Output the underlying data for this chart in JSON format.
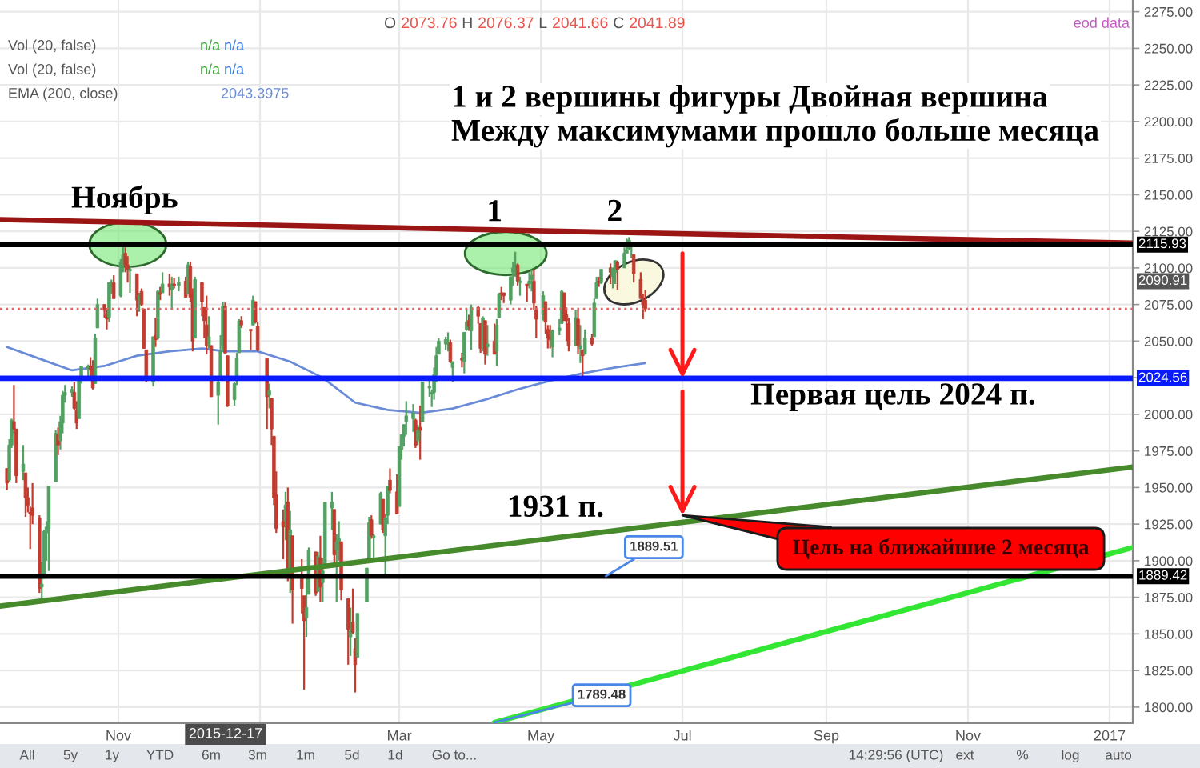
{
  "chart_data": {
    "type": "candlestick",
    "title": "1 и 2 вершины фигуры Двойная вершина",
    "subtitle": "Между максимумами прошло больше месяца",
    "x": [
      "2015-09-14",
      "2015-09-15",
      "2015-09-16",
      "2015-09-17",
      "2015-09-18",
      "2015-09-21",
      "2015-09-22",
      "2015-09-23",
      "2015-09-24",
      "2015-09-25",
      "2015-09-28",
      "2015-09-29",
      "2015-09-30",
      "2015-10-01",
      "2015-10-02",
      "2015-10-05",
      "2015-10-06",
      "2015-10-07",
      "2015-10-08",
      "2015-10-09",
      "2015-10-12",
      "2015-10-13",
      "2015-10-14",
      "2015-10-15",
      "2015-10-16",
      "2015-10-19",
      "2015-10-20",
      "2015-10-21",
      "2015-10-22",
      "2015-10-23",
      "2015-10-26",
      "2015-10-27",
      "2015-10-28",
      "2015-10-29",
      "2015-10-30",
      "2015-11-02",
      "2015-11-03",
      "2015-11-04",
      "2015-11-05",
      "2015-11-06",
      "2015-11-09",
      "2015-11-10",
      "2015-11-11",
      "2015-11-12",
      "2015-11-13",
      "2015-11-16",
      "2015-11-17",
      "2015-11-18",
      "2015-11-19",
      "2015-11-20",
      "2015-11-23",
      "2015-11-24",
      "2015-11-25",
      "2015-11-27",
      "2015-11-30",
      "2015-12-01",
      "2015-12-02",
      "2015-12-03",
      "2015-12-04",
      "2015-12-07",
      "2015-12-08",
      "2015-12-09",
      "2015-12-10",
      "2015-12-11",
      "2015-12-14",
      "2015-12-15",
      "2015-12-16",
      "2015-12-17",
      "2015-12-18",
      "2015-12-21",
      "2015-12-22",
      "2015-12-23",
      "2015-12-24",
      "2015-12-28",
      "2015-12-29",
      "2015-12-30",
      "2015-12-31",
      "2016-01-04",
      "2016-01-05",
      "2016-01-06",
      "2016-01-07",
      "2016-01-08",
      "2016-01-11",
      "2016-01-12",
      "2016-01-13",
      "2016-01-14",
      "2016-01-15",
      "2016-01-19",
      "2016-01-20",
      "2016-01-21",
      "2016-01-22",
      "2016-01-25",
      "2016-01-26",
      "2016-01-27",
      "2016-01-28",
      "2016-01-29",
      "2016-02-01",
      "2016-02-02",
      "2016-02-03",
      "2016-02-04",
      "2016-02-05",
      "2016-02-08",
      "2016-02-09",
      "2016-02-10",
      "2016-02-11",
      "2016-02-12",
      "2016-02-16",
      "2016-02-17",
      "2016-02-18",
      "2016-02-19",
      "2016-02-22",
      "2016-02-23",
      "2016-02-24",
      "2016-02-25",
      "2016-02-26",
      "2016-02-29",
      "2016-03-01",
      "2016-03-02",
      "2016-03-03",
      "2016-03-04",
      "2016-03-07",
      "2016-03-08",
      "2016-03-09",
      "2016-03-10",
      "2016-03-11",
      "2016-03-14",
      "2016-03-15",
      "2016-03-16",
      "2016-03-17",
      "2016-03-18",
      "2016-03-21",
      "2016-03-22",
      "2016-03-23",
      "2016-03-24",
      "2016-03-28",
      "2016-03-29",
      "2016-03-30",
      "2016-03-31",
      "2016-04-01",
      "2016-04-04",
      "2016-04-05",
      "2016-04-06",
      "2016-04-07",
      "2016-04-08",
      "2016-04-11",
      "2016-04-12",
      "2016-04-13",
      "2016-04-14",
      "2016-04-15",
      "2016-04-18",
      "2016-04-19",
      "2016-04-20",
      "2016-04-21",
      "2016-04-22",
      "2016-04-25",
      "2016-04-26",
      "2016-04-27",
      "2016-04-28",
      "2016-04-29",
      "2016-05-02",
      "2016-05-03",
      "2016-05-04",
      "2016-05-05",
      "2016-05-06",
      "2016-05-09",
      "2016-05-10",
      "2016-05-11",
      "2016-05-12",
      "2016-05-13",
      "2016-05-16",
      "2016-05-17",
      "2016-05-18",
      "2016-05-19",
      "2016-05-20",
      "2016-05-23",
      "2016-05-24",
      "2016-05-25",
      "2016-05-26",
      "2016-05-27",
      "2016-05-31",
      "2016-06-01",
      "2016-06-02",
      "2016-06-03",
      "2016-06-06",
      "2016-06-07",
      "2016-06-08",
      "2016-06-09",
      "2016-06-10",
      "2016-06-13",
      "2016-06-14",
      "2016-06-15"
    ],
    "ohlc": [
      [
        1963,
        1963,
        1948,
        1953
      ],
      [
        1955,
        1983,
        1954,
        1979
      ],
      [
        1979,
        1997,
        1977,
        1996
      ],
      [
        1995,
        2020,
        1987,
        1990
      ],
      [
        1990,
        1990,
        1953,
        1958
      ],
      [
        1961,
        1979,
        1955,
        1966
      ],
      [
        1960,
        1960,
        1930,
        1943
      ],
      [
        1943,
        1950,
        1933,
        1938
      ],
      [
        1933,
        1937,
        1908,
        1932
      ],
      [
        1936,
        1953,
        1925,
        1931
      ],
      [
        1929,
        1931,
        1878,
        1881
      ],
      [
        1882,
        1899,
        1872,
        1884
      ],
      [
        1888,
        1921,
        1888,
        1920
      ],
      [
        1919,
        1927,
        1900,
        1923
      ],
      [
        1922,
        1951,
        1893,
        1951
      ],
      [
        1954,
        1989,
        1954,
        1987
      ],
      [
        1986,
        1991,
        1972,
        1979
      ],
      [
        1982,
        1999,
        1976,
        1995
      ],
      [
        1994,
        2016,
        1987,
        2013
      ],
      [
        2013,
        2020,
        2008,
        2015
      ],
      [
        2015,
        2019,
        2012,
        2017
      ],
      [
        2015,
        2022,
        2003,
        2004
      ],
      [
        2003,
        2009,
        1990,
        1994
      ],
      [
        1997,
        2024,
        1997,
        2023
      ],
      [
        2025,
        2033,
        2021,
        2033
      ],
      [
        2031,
        2034,
        2023,
        2033
      ],
      [
        2033,
        2039,
        2026,
        2030
      ],
      [
        2033,
        2037,
        2017,
        2018
      ],
      [
        2021,
        2055,
        2021,
        2052
      ],
      [
        2059,
        2079,
        2059,
        2075
      ],
      [
        2075,
        2075,
        2066,
        2071
      ],
      [
        2068,
        2071,
        2058,
        2065
      ],
      [
        2066,
        2090,
        2063,
        2090
      ],
      [
        2088,
        2092,
        2082,
        2089
      ],
      [
        2090,
        2095,
        2079,
        2079
      ],
      [
        2081,
        2106,
        2080,
        2104
      ],
      [
        2102,
        2116,
        2097,
        2109
      ],
      [
        2110,
        2114,
        2097,
        2102
      ],
      [
        2102,
        2108,
        2090,
        2099
      ],
      [
        2098,
        2101,
        2083,
        2099
      ],
      [
        2096,
        2096,
        2067,
        2078
      ],
      [
        2078,
        2083,
        2070,
        2081
      ],
      [
        2084,
        2086,
        2074,
        2075
      ],
      [
        2072,
        2072,
        2045,
        2045
      ],
      [
        2044,
        2044,
        2022,
        2023
      ],
      [
        2022,
        2053,
        2019,
        2053
      ],
      [
        2054,
        2066,
        2046,
        2051
      ],
      [
        2052,
        2085,
        2051,
        2084
      ],
      [
        2083,
        2087,
        2078,
        2082
      ],
      [
        2083,
        2097,
        2083,
        2089
      ],
      [
        2089,
        2096,
        2081,
        2087
      ],
      [
        2085,
        2094,
        2071,
        2089
      ],
      [
        2089,
        2093,
        2086,
        2088
      ],
      [
        2088,
        2094,
        2084,
        2090
      ],
      [
        2091,
        2094,
        2080,
        2080
      ],
      [
        2082,
        2104,
        2082,
        2102
      ],
      [
        2101,
        2104,
        2077,
        2080
      ],
      [
        2082,
        2086,
        2043,
        2050
      ],
      [
        2052,
        2094,
        2052,
        2092
      ],
      [
        2090,
        2090,
        2067,
        2077
      ],
      [
        2073,
        2073,
        2052,
        2064
      ],
      [
        2061,
        2081,
        2041,
        2047
      ],
      [
        2047,
        2067,
        2045,
        2053
      ],
      [
        2047,
        2047,
        2012,
        2012
      ],
      [
        2013,
        2023,
        1993,
        2022
      ],
      [
        2026,
        2054,
        2026,
        2043
      ],
      [
        2047,
        2077,
        2043,
        2074
      ],
      [
        2073.76,
        2076.37,
        2041.66,
        2041.89
      ],
      [
        2040,
        2040,
        2005,
        2006
      ],
      [
        2010,
        2022,
        2006,
        2021
      ],
      [
        2023,
        2042,
        2020,
        2038
      ],
      [
        2042,
        2065,
        2042,
        2064
      ],
      [
        2064,
        2067,
        2059,
        2061
      ],
      [
        2058,
        2058,
        2044,
        2057
      ],
      [
        2061,
        2081,
        2061,
        2078
      ],
      [
        2077,
        2077,
        2062,
        2063
      ],
      [
        2060,
        2063,
        2043,
        2044
      ],
      [
        2038,
        2038,
        1990,
        2012
      ],
      [
        2013,
        2021,
        2004,
        2016
      ],
      [
        2011,
        2011,
        1979,
        1990
      ],
      [
        1985,
        1985,
        1938,
        1943
      ],
      [
        1945,
        1961,
        1919,
        1922
      ],
      [
        1927,
        1935,
        1901,
        1923
      ],
      [
        1927,
        1947,
        1914,
        1938
      ],
      [
        1940,
        1950,
        1886,
        1890
      ],
      [
        1892,
        1934,
        1878,
        1921
      ],
      [
        1917,
        1917,
        1857,
        1880
      ],
      [
        1888,
        1901,
        1864,
        1881
      ],
      [
        1876,
        1876,
        1812,
        1859
      ],
      [
        1861,
        1890,
        1848,
        1868
      ],
      [
        1877,
        1909,
        1877,
        1907
      ],
      [
        1906,
        1906,
        1876,
        1878
      ],
      [
        1879,
        1906,
        1879,
        1903
      ],
      [
        1902,
        1917,
        1872,
        1882
      ],
      [
        1885,
        1902,
        1872,
        1893
      ],
      [
        1895,
        1940,
        1895,
        1940
      ],
      [
        1936,
        1947,
        1921,
        1940
      ],
      [
        1935,
        1935,
        1897,
        1904
      ],
      [
        1907,
        1918,
        1872,
        1913
      ],
      [
        1911,
        1927,
        1900,
        1915
      ],
      [
        1913,
        1913,
        1873,
        1880
      ],
      [
        1874,
        1874,
        1829,
        1853
      ],
      [
        1848,
        1868,
        1835,
        1852
      ],
      [
        1858,
        1881,
        1850,
        1851
      ],
      [
        1840,
        1847,
        1810,
        1829
      ],
      [
        1834,
        1864,
        1834,
        1864
      ],
      [
        1872,
        1895,
        1872,
        1895
      ],
      [
        1899,
        1930,
        1899,
        1926
      ],
      [
        1928,
        1931,
        1915,
        1917
      ],
      [
        1916,
        1918,
        1902,
        1917
      ],
      [
        1925,
        1947,
        1925,
        1946
      ],
      [
        1942,
        1942,
        1919,
        1921
      ],
      [
        1917,
        1932,
        1891,
        1929
      ],
      [
        1931,
        1951,
        1925,
        1951
      ],
      [
        1955,
        1963,
        1946,
        1948
      ],
      [
        1947,
        1959,
        1932,
        1932
      ],
      [
        1937,
        1978,
        1937,
        1978
      ],
      [
        1976,
        1986,
        1969,
        1986
      ],
      [
        1985,
        1993,
        1978,
        1993
      ],
      [
        1995,
        2009,
        1986,
        1999
      ],
      [
        1997,
        2007,
        1988,
        2001
      ],
      [
        1996,
        1997,
        1977,
        1979
      ],
      [
        1982,
        1993,
        1979,
        1989
      ],
      [
        1991,
        2006,
        1969,
        1989
      ],
      [
        1995,
        2022,
        1995,
        2022
      ],
      [
        2018,
        2024,
        2012,
        2019
      ],
      [
        2014,
        2017,
        2005,
        2015
      ],
      [
        2015,
        2032,
        2010,
        2027
      ],
      [
        2027,
        2046,
        2022,
        2040
      ],
      [
        2041,
        2052,
        2041,
        2050
      ],
      [
        2048,
        2053,
        2044,
        2051
      ],
      [
        2048,
        2056,
        2043,
        2049
      ],
      [
        2049,
        2051,
        2035,
        2036
      ],
      [
        2032,
        2036,
        2022,
        2036
      ],
      [
        2038,
        2042,
        2032,
        2037
      ],
      [
        2036,
        2056,
        2028,
        2056
      ],
      [
        2058,
        2072,
        2057,
        2063
      ],
      [
        2064,
        2068,
        2057,
        2060
      ],
      [
        2057,
        2075,
        2044,
        2073
      ],
      [
        2073,
        2074,
        2062,
        2067
      ],
      [
        2062,
        2062,
        2042,
        2045
      ],
      [
        2045,
        2067,
        2043,
        2066
      ],
      [
        2064,
        2064,
        2034,
        2041
      ],
      [
        2046,
        2061,
        2040,
        2048
      ],
      [
        2050,
        2062,
        2041,
        2041
      ],
      [
        2043,
        2065,
        2033,
        2061
      ],
      [
        2066,
        2083,
        2066,
        2082
      ],
      [
        2083,
        2087,
        2078,
        2082
      ],
      [
        2083,
        2083,
        2076,
        2081
      ],
      [
        2078,
        2094,
        2075,
        2094
      ],
      [
        2097,
        2104,
        2088,
        2100
      ],
      [
        2100,
        2111,
        2094,
        2102
      ],
      [
        2102,
        2103,
        2088,
        2091
      ],
      [
        2090,
        2094,
        2081,
        2091
      ],
      [
        2089,
        2089,
        2077,
        2088
      ],
      [
        2089,
        2097,
        2086,
        2091
      ],
      [
        2092,
        2099,
        2084,
        2095
      ],
      [
        2091,
        2099,
        2071,
        2076
      ],
      [
        2071,
        2074,
        2052,
        2065
      ],
      [
        2068,
        2084,
        2064,
        2081
      ],
      [
        2077,
        2077,
        2055,
        2063
      ],
      [
        2058,
        2061,
        2045,
        2052
      ],
      [
        2054,
        2061,
        2045,
        2051
      ],
      [
        2046,
        2058,
        2039,
        2057
      ],
      [
        2057,
        2065,
        2054,
        2059
      ],
      [
        2062,
        2085,
        2062,
        2084
      ],
      [
        2083,
        2083,
        2064,
        2064
      ],
      [
        2068,
        2073,
        2050,
        2064
      ],
      [
        2062,
        2066,
        2043,
        2047
      ],
      [
        2047,
        2071,
        2047,
        2066
      ],
      [
        2065,
        2071,
        2041,
        2047
      ],
      [
        2045,
        2061,
        2035,
        2047
      ],
      [
        2044,
        2044,
        2026,
        2040
      ],
      [
        2041,
        2058,
        2041,
        2052
      ],
      [
        2052,
        2055,
        2047,
        2048
      ],
      [
        2053,
        2079,
        2053,
        2076
      ],
      [
        2079,
        2094,
        2079,
        2090
      ],
      [
        2091,
        2094,
        2087,
        2090
      ],
      [
        2090,
        2099,
        2089,
        2099
      ],
      [
        2100,
        2103,
        2089,
        2097
      ],
      [
        2094,
        2100,
        2086,
        2100
      ],
      [
        2097,
        2105,
        2089,
        2105
      ],
      [
        2104,
        2105,
        2085,
        2099
      ],
      [
        2100,
        2114,
        2100,
        2110
      ],
      [
        2110,
        2120,
        2110,
        2112
      ],
      [
        2113,
        2121,
        2112,
        2119
      ],
      [
        2115,
        2117,
        2107,
        2116
      ],
      [
        2109,
        2109,
        2090,
        2096
      ],
      [
        2092,
        2097,
        2079,
        2079
      ],
      [
        2077,
        2082,
        2065,
        2075
      ],
      [
        2078,
        2085,
        2070,
        2072
      ]
    ],
    "colors": [
      "#c23b2e",
      "#52a062",
      "#52a062",
      "#c23b2e",
      "#c23b2e",
      "#52a062",
      "#c23b2e",
      "#c23b2e",
      "#c23b2e",
      "#c23b2e",
      "#c23b2e",
      "#52a062",
      "#52a062",
      "#52a062",
      "#52a062",
      "#52a062",
      "#c23b2e",
      "#52a062",
      "#52a062",
      "#52a062",
      "#52a062",
      "#c23b2e",
      "#c23b2e",
      "#52a062",
      "#52a062",
      "#52a062",
      "#c23b2e",
      "#c23b2e",
      "#52a062",
      "#52a062",
      "#c23b2e",
      "#c23b2e",
      "#52a062",
      "#52a062",
      "#c23b2e",
      "#52a062",
      "#52a062",
      "#c23b2e",
      "#c23b2e",
      "#52a062",
      "#c23b2e",
      "#52a062",
      "#c23b2e",
      "#c23b2e",
      "#c23b2e",
      "#52a062",
      "#c23b2e",
      "#52a062",
      "#c23b2e",
      "#52a062",
      "#c23b2e",
      "#52a062",
      "#c23b2e",
      "#52a062",
      "#c23b2e",
      "#52a062",
      "#c23b2e",
      "#c23b2e",
      "#52a062",
      "#c23b2e",
      "#c23b2e",
      "#c23b2e",
      "#52a062",
      "#c23b2e",
      "#52a062",
      "#52a062",
      "#52a062",
      "#c23b2e",
      "#c23b2e",
      "#52a062",
      "#52a062",
      "#52a062",
      "#c23b2e",
      "#c23b2e",
      "#52a062",
      "#c23b2e",
      "#c23b2e",
      "#c23b2e",
      "#52a062",
      "#c23b2e",
      "#c23b2e",
      "#c23b2e",
      "#c23b2e",
      "#52a062",
      "#c23b2e",
      "#52a062",
      "#c23b2e",
      "#c23b2e",
      "#c23b2e",
      "#52a062",
      "#52a062",
      "#c23b2e",
      "#52a062",
      "#c23b2e",
      "#52a062",
      "#52a062",
      "#52a062",
      "#c23b2e",
      "#52a062",
      "#52a062",
      "#c23b2e",
      "#c23b2e",
      "#52a062",
      "#c23b2e",
      "#c23b2e",
      "#52a062",
      "#52a062",
      "#52a062",
      "#c23b2e",
      "#52a062",
      "#52a062",
      "#c23b2e",
      "#52a062",
      "#52a062",
      "#c23b2e",
      "#c23b2e",
      "#52a062",
      "#52a062",
      "#52a062",
      "#52a062",
      "#52a062",
      "#c23b2e",
      "#52a062",
      "#c23b2e",
      "#52a062",
      "#52a062",
      "#52a062",
      "#52a062",
      "#52a062",
      "#52a062",
      "#52a062",
      "#52a062",
      "#c23b2e",
      "#52a062",
      "#c23b2e",
      "#52a062",
      "#52a062",
      "#c23b2e",
      "#52a062",
      "#c23b2e",
      "#c23b2e",
      "#52a062",
      "#c23b2e",
      "#52a062",
      "#c23b2e",
      "#52a062",
      "#52a062",
      "#c23b2e",
      "#c23b2e",
      "#52a062",
      "#52a062",
      "#52a062",
      "#c23b2e",
      "#52a062",
      "#c23b2e",
      "#52a062",
      "#52a062",
      "#c23b2e",
      "#c23b2e",
      "#52a062",
      "#c23b2e",
      "#c23b2e",
      "#c23b2e",
      "#52a062",
      "#52a062",
      "#52a062",
      "#c23b2e",
      "#c23b2e",
      "#c23b2e",
      "#52a062",
      "#c23b2e",
      "#52a062",
      "#c23b2e",
      "#52a062",
      "#c23b2e",
      "#52a062",
      "#52a062",
      "#c23b2e",
      "#52a062",
      "#c23b2e",
      "#52a062",
      "#52a062",
      "#c23b2e",
      "#52a062",
      "#52a062",
      "#52a062",
      "#52a062",
      "#c23b2e",
      "#c23b2e",
      "#c23b2e",
      "#c23b2e"
    ],
    "series": [
      {
        "type": "line",
        "color": "#6a8bd8",
        "x": [
          "2015-09-14",
          "2015-09-28",
          "2015-10-12",
          "2015-10-26",
          "2015-11-09",
          "2015-11-23",
          "2015-12-07",
          "2015-12-17",
          "2015-12-31",
          "2016-01-14",
          "2016-01-28",
          "2016-02-11",
          "2016-02-25",
          "2016-03-10",
          "2016-03-24",
          "2016-04-07",
          "2016-04-21",
          "2016-05-05",
          "2016-05-19",
          "2016-06-02",
          "2016-06-15"
        ],
        "values": [
          2046,
          2038,
          2030,
          2033,
          2040,
          2043,
          2045,
          2043,
          2043,
          2036,
          2025,
          2008,
          2003,
          2001,
          2004,
          2010,
          2017,
          2023,
          2028,
          2032,
          2035
        ]
      },
      {
        "type": "line",
        "color": "#9b1515",
        "x": [
          "2015-09-11",
          "2017-01-11"
        ],
        "values": [
          2133,
          2117
        ]
      },
      {
        "type": "line",
        "color": "#468a2c",
        "x": [
          "2015-09-11",
          "2017-01-11"
        ],
        "values": [
          1869,
          1964
        ]
      },
      {
        "type": "line",
        "color": "#33e633",
        "x": [
          "2016-04-11",
          "2017-01-11"
        ],
        "values": [
          1789.48,
          1909
        ]
      }
    ],
    "xlim": [
      "2015-09-11",
      "2017-01-11"
    ],
    "xticks": [
      {
        "value": "2015-11-01",
        "label": "Nov"
      },
      {
        "value": "2016-01-01",
        "label": null
      },
      {
        "value": "2016-03-01",
        "label": "Mar"
      },
      {
        "value": "2016-05-01",
        "label": "May"
      },
      {
        "value": "2016-07-01",
        "label": "Jul"
      },
      {
        "value": "2016-09-01",
        "label": "Sep"
      },
      {
        "value": "2016-11-01",
        "label": "Nov"
      },
      {
        "value": "2017-01-01",
        "label": "2017"
      }
    ],
    "ylim": [
      1789,
      2283
    ],
    "yticks": [
      {
        "value": 1800,
        "label": "1800.00"
      },
      {
        "value": 1825,
        "label": "1825.00"
      },
      {
        "value": 1850,
        "label": "1850.00"
      },
      {
        "value": 1875,
        "label": "1875.00"
      },
      {
        "value": 1900,
        "label": "1900.00"
      },
      {
        "value": 1925,
        "label": "1925.00"
      },
      {
        "value": 1950,
        "label": "1950.00"
      },
      {
        "value": 1975,
        "label": "1975.00"
      },
      {
        "value": 2000,
        "label": "2000.00"
      },
      {
        "value": 2025,
        "label": null
      },
      {
        "value": 2050,
        "label": "2050.00"
      },
      {
        "value": 2075,
        "label": "2075.00"
      },
      {
        "value": 2100,
        "label": "2100.00"
      },
      {
        "value": 2125,
        "label": "2125.00"
      },
      {
        "value": 2150,
        "label": "2150.00"
      },
      {
        "value": 2175,
        "label": "2175.00"
      },
      {
        "value": 2200,
        "label": "2200.00"
      },
      {
        "value": 2225,
        "label": "2225.00"
      },
      {
        "value": 2250,
        "label": "2250.00"
      },
      {
        "value": 2275,
        "label": "2275.00"
      }
    ],
    "grid": true,
    "ref_lines": [
      {
        "axis": "y",
        "value": 2115.93,
        "label": "2115.93",
        "color": "#000000"
      },
      {
        "axis": "y",
        "value": 2024.56,
        "label": "2024.56",
        "color": "#0a1aff"
      },
      {
        "axis": "y",
        "value": 1889.42,
        "label": "1889.42",
        "color": "#000000"
      },
      {
        "axis": "y",
        "value": 2072,
        "color": "#e06666",
        "line_style": "dotted"
      }
    ],
    "annotations": [
      {
        "text": "Ноябрь",
        "x": "2015-11-03",
        "y": 2116
      },
      {
        "text": "1",
        "x": "2016-04-20",
        "y": 2111
      },
      {
        "text": "2",
        "x": "2016-06-08",
        "y": 2121
      },
      {
        "text": "1931 п.",
        "x": "2016-07-01",
        "y": 1931
      },
      {
        "text": "1889.51",
        "x": "2016-05-29",
        "y": 1889.51
      },
      {
        "text": "1789.48",
        "x": "2016-04-11",
        "y": 1789.48
      },
      {
        "text": "2090.91",
        "y": 2090.91
      },
      "Первая цель 2024 п.",
      "Цель на ближайшие 2 месяца",
      "2015-12-17",
      "O 2073.76 H 2076.37 L 2041.66 C 2041.89",
      "Vol (20, false) n/a n/a",
      "Vol (20, false) n/a n/a",
      "EMA (200, close)",
      "2043.3975",
      "eod data",
      "All",
      "5y",
      "1y",
      "YTD",
      "6m",
      "3m",
      "1m",
      "5d",
      "1d",
      "Go to...",
      "14:29:56 (UTC)",
      "ext",
      "%",
      "log",
      "auto"
    ]
  }
}
